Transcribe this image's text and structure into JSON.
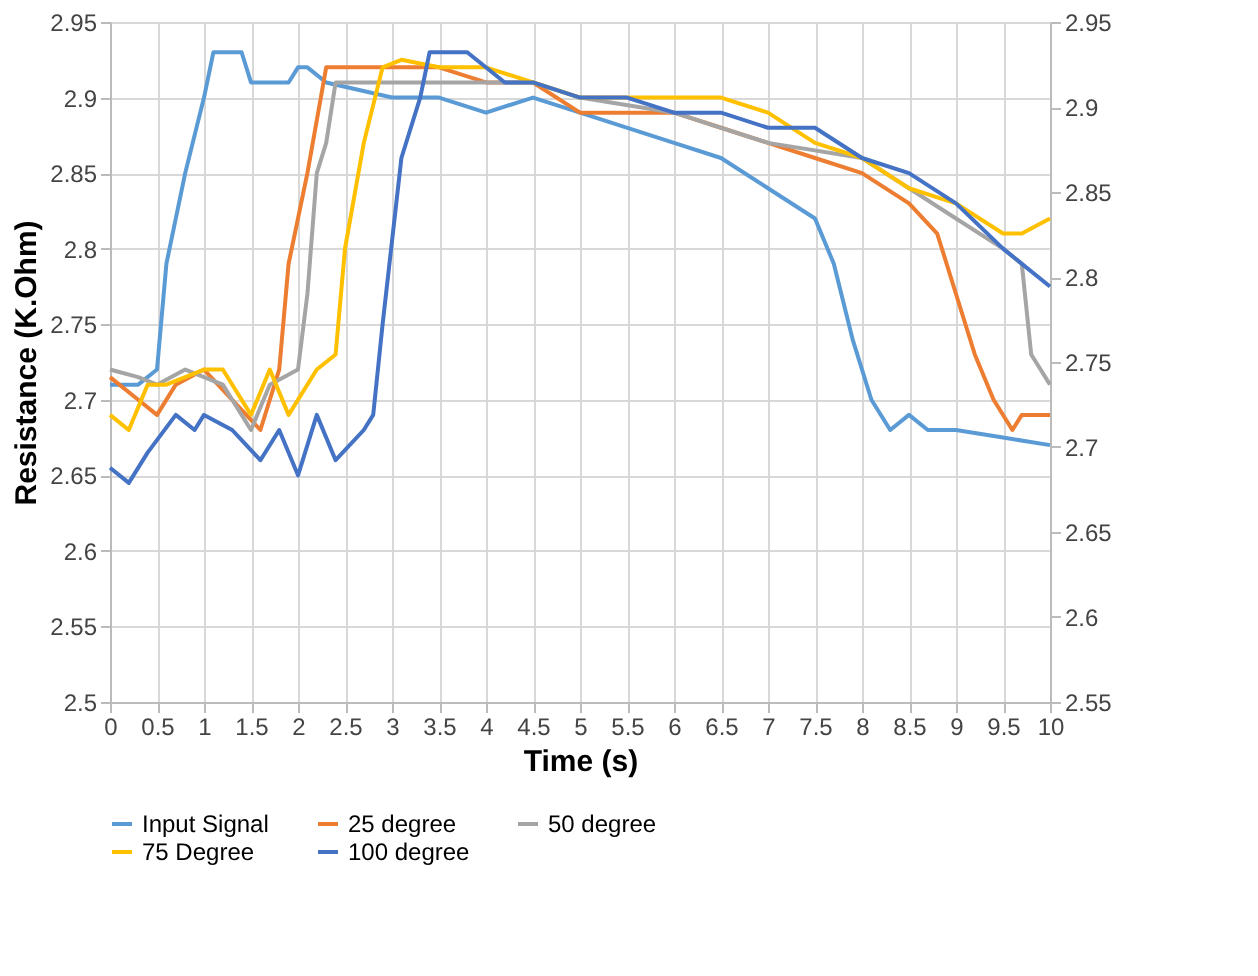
{
  "chart_data": {
    "type": "line",
    "xlabel": "Time (s)",
    "ylabel": "Resistance (K.Ohm)",
    "xlim": [
      0,
      10
    ],
    "xticks": [
      0,
      0.5,
      1,
      1.5,
      2,
      2.5,
      3,
      3.5,
      4,
      4.5,
      5,
      5.5,
      6,
      6.5,
      7,
      7.5,
      8,
      8.5,
      9,
      9.5,
      10
    ],
    "ylim": [
      2.5,
      2.95
    ],
    "yticks": [
      2.5,
      2.55,
      2.6,
      2.65,
      2.7,
      2.75,
      2.8,
      2.85,
      2.9,
      2.95
    ],
    "y2lim": [
      2.55,
      2.95
    ],
    "y2ticks": [
      2.55,
      2.6,
      2.65,
      2.7,
      2.75,
      2.8,
      2.85,
      2.9,
      2.95
    ],
    "grid": true,
    "legend": "bottom",
    "marker": "none",
    "line_style": "solid",
    "series": [
      {
        "name": "Input Signal",
        "color": "#5b9bd5",
        "x": [
          0,
          0.3,
          0.5,
          0.6,
          0.8,
          1.0,
          1.1,
          1.4,
          1.5,
          1.9,
          2.0,
          2.1,
          2.3,
          3,
          3.5,
          4,
          4.5,
          5,
          6,
          6.5,
          7,
          7.5,
          7.7,
          7.9,
          8.1,
          8.3,
          8.5,
          8.7,
          9,
          9.5,
          10
        ],
        "values": [
          2.71,
          2.71,
          2.72,
          2.79,
          2.85,
          2.9,
          2.93,
          2.93,
          2.91,
          2.91,
          2.92,
          2.92,
          2.91,
          2.9,
          2.9,
          2.89,
          2.9,
          2.89,
          2.87,
          2.86,
          2.84,
          2.82,
          2.79,
          2.74,
          2.7,
          2.68,
          2.69,
          2.68,
          2.68,
          2.675,
          2.67
        ]
      },
      {
        "name": "25 degree",
        "color": "#ed7d31",
        "x": [
          0,
          0.3,
          0.5,
          0.7,
          1,
          1.3,
          1.6,
          1.8,
          1.9,
          2.1,
          2.3,
          2.5,
          3,
          3.5,
          4,
          4.5,
          5,
          5.5,
          6,
          6.5,
          7,
          7.5,
          8,
          8.5,
          8.8,
          9,
          9.2,
          9.4,
          9.6,
          9.7,
          10
        ],
        "values": [
          2.715,
          2.7,
          2.69,
          2.71,
          2.72,
          2.7,
          2.68,
          2.72,
          2.79,
          2.85,
          2.92,
          2.92,
          2.92,
          2.92,
          2.91,
          2.91,
          2.89,
          2.89,
          2.89,
          2.88,
          2.87,
          2.86,
          2.85,
          2.83,
          2.81,
          2.77,
          2.73,
          2.7,
          2.68,
          2.69,
          2.69
        ]
      },
      {
        "name": "50 degree",
        "color": "#a5a5a5",
        "x": [
          0,
          0.3,
          0.5,
          0.8,
          1.2,
          1.5,
          1.7,
          2,
          2.1,
          2.2,
          2.3,
          2.4,
          2.5,
          3,
          3.5,
          4,
          4.5,
          5,
          6,
          7,
          8,
          8.5,
          9,
          9.5,
          9.7,
          9.8,
          10
        ],
        "values": [
          2.72,
          2.715,
          2.71,
          2.72,
          2.71,
          2.68,
          2.71,
          2.72,
          2.77,
          2.85,
          2.87,
          2.91,
          2.91,
          2.91,
          2.91,
          2.91,
          2.91,
          2.9,
          2.89,
          2.87,
          2.86,
          2.84,
          2.82,
          2.8,
          2.79,
          2.73,
          2.71
        ]
      },
      {
        "name": "75 Degree",
        "color": "#ffc000",
        "x": [
          0,
          0.2,
          0.4,
          0.6,
          1,
          1.2,
          1.5,
          1.7,
          1.9,
          2.2,
          2.4,
          2.5,
          2.7,
          2.9,
          3.1,
          3.5,
          4,
          4.5,
          5,
          5.5,
          6,
          6.5,
          7,
          7.5,
          8,
          8.5,
          9,
          9.5,
          9.7,
          10
        ],
        "values": [
          2.69,
          2.68,
          2.71,
          2.71,
          2.72,
          2.72,
          2.69,
          2.72,
          2.69,
          2.72,
          2.73,
          2.8,
          2.87,
          2.92,
          2.925,
          2.92,
          2.92,
          2.91,
          2.9,
          2.9,
          2.9,
          2.9,
          2.89,
          2.87,
          2.86,
          2.84,
          2.83,
          2.81,
          2.81,
          2.82
        ]
      },
      {
        "name": "100 degree",
        "color": "#4472c4",
        "x": [
          0,
          0.2,
          0.4,
          0.7,
          0.9,
          1,
          1.3,
          1.6,
          1.8,
          2.0,
          2.2,
          2.4,
          2.7,
          2.8,
          2.9,
          3.1,
          3.3,
          3.4,
          3.8,
          4.2,
          4.5,
          5,
          5.5,
          6,
          6.5,
          7,
          7.5,
          8,
          8.5,
          9,
          9.5,
          10
        ],
        "values": [
          2.655,
          2.645,
          2.665,
          2.69,
          2.68,
          2.69,
          2.68,
          2.66,
          2.68,
          2.65,
          2.69,
          2.66,
          2.68,
          2.69,
          2.75,
          2.86,
          2.9,
          2.93,
          2.93,
          2.91,
          2.91,
          2.9,
          2.9,
          2.89,
          2.89,
          2.88,
          2.88,
          2.86,
          2.85,
          2.83,
          2.8,
          2.775
        ]
      }
    ]
  }
}
